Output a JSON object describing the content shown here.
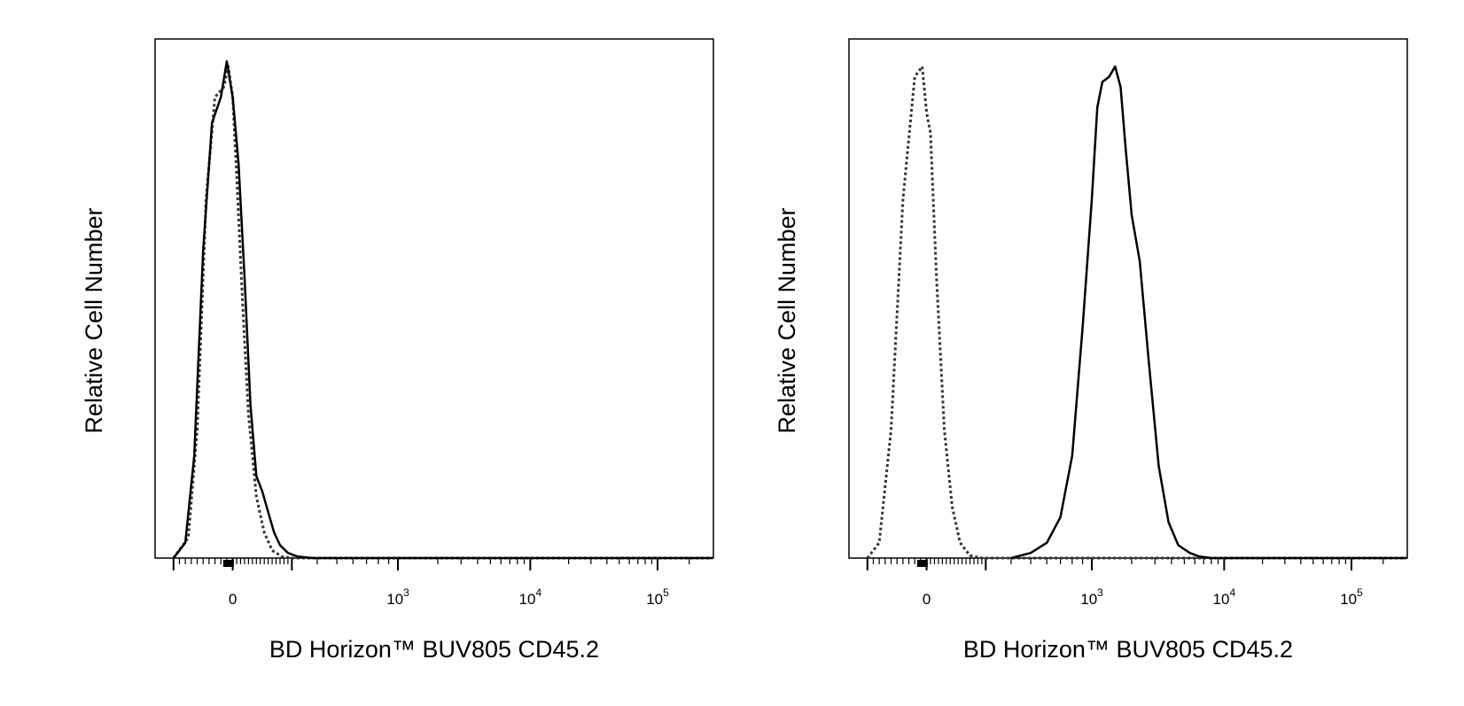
{
  "chart_data": [
    {
      "type": "line",
      "title": "",
      "xlabel": "BD Horizon™ BUV805 CD45.2",
      "ylabel": "Relative Cell Number",
      "x_scale": "biexponential",
      "ylim": [
        0,
        100
      ],
      "x_ticks": [
        {
          "label": "0",
          "value": 0
        },
        {
          "label": "10",
          "exp": "3",
          "value": 1000
        },
        {
          "label": "10",
          "exp": "4",
          "value": 10000
        },
        {
          "label": "10",
          "exp": "5",
          "value": 100000
        }
      ],
      "series": [
        {
          "style": "dotted",
          "x": [
            -200,
            -150,
            -120,
            -90,
            -60,
            -30,
            -15,
            0,
            20,
            50,
            80,
            120,
            160,
            200,
            250,
            300
          ],
          "y": [
            0,
            4,
            25,
            70,
            90,
            92,
            96,
            90,
            75,
            50,
            28,
            12,
            5,
            1.5,
            0.3,
            0
          ]
        },
        {
          "style": "solid",
          "x": [
            -200,
            -160,
            -130,
            -100,
            -70,
            -40,
            -20,
            0,
            30,
            60,
            90,
            120,
            150,
            180,
            210,
            240,
            280,
            320,
            380
          ],
          "y": [
            0,
            3,
            20,
            60,
            85,
            90,
            97,
            90,
            77,
            55,
            30,
            16,
            13,
            9,
            5,
            2.5,
            1,
            0.3,
            0
          ]
        }
      ]
    },
    {
      "type": "line",
      "title": "",
      "xlabel": "BD Horizon™ BUV805 CD45.2",
      "ylabel": "Relative Cell Number",
      "x_scale": "biexponential",
      "ylim": [
        0,
        100
      ],
      "x_ticks": [
        {
          "label": "0",
          "value": 0
        },
        {
          "label": "10",
          "exp": "3",
          "value": 1000
        },
        {
          "label": "10",
          "exp": "4",
          "value": 10000
        },
        {
          "label": "10",
          "exp": "5",
          "value": 100000
        }
      ],
      "series": [
        {
          "style": "dotted",
          "x": [
            -200,
            -160,
            -120,
            -80,
            -40,
            -15,
            0,
            20,
            50,
            90,
            130,
            170,
            220,
            280
          ],
          "y": [
            0,
            3,
            25,
            70,
            94,
            96,
            87,
            83,
            55,
            25,
            10,
            3,
            0.5,
            0
          ]
        },
        {
          "style": "solid",
          "x": [
            400,
            500,
            600,
            700,
            800,
            900,
            1000,
            1100,
            1200,
            1350,
            1500,
            1650,
            1800,
            2000,
            2300,
            2700,
            3200,
            3800,
            4500,
            5500,
            6500,
            8000
          ],
          "y": [
            0,
            1,
            3,
            8,
            20,
            45,
            70,
            88,
            93,
            94,
            96,
            92,
            80,
            67,
            58,
            38,
            18,
            7,
            2.5,
            1,
            0.3,
            0
          ]
        }
      ]
    }
  ]
}
